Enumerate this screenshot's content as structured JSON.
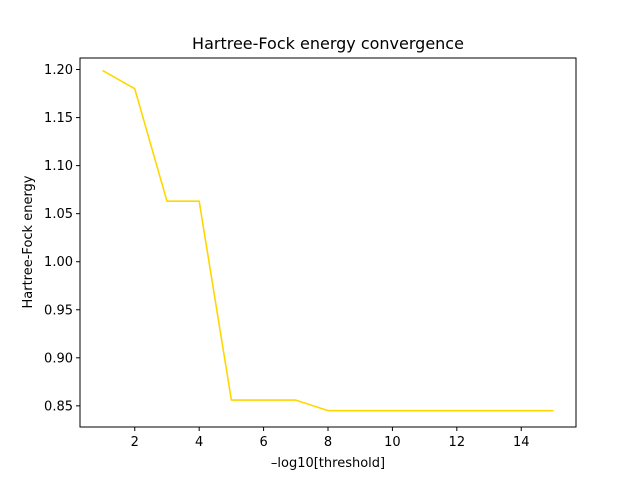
{
  "chart_data": {
    "type": "line",
    "title": "Hartree-Fock energy convergence",
    "xlabel": "–log10[threshold]",
    "ylabel": "Hartree-Fock energy",
    "xlim": [
      0.3,
      15.7
    ],
    "ylim": [
      0.828,
      1.212
    ],
    "xticks": [
      2,
      4,
      6,
      8,
      10,
      12,
      14
    ],
    "yticks": [
      0.85,
      0.9,
      0.95,
      1.0,
      1.05,
      1.1,
      1.15,
      1.2
    ],
    "grid": false,
    "series": [
      {
        "color": "#ffd700",
        "x": [
          1,
          2,
          3,
          4,
          5,
          6,
          7,
          8,
          9,
          10,
          11,
          12,
          13,
          14,
          15
        ],
        "y": [
          1.199,
          1.18,
          1.063,
          1.063,
          0.856,
          0.856,
          0.856,
          0.845,
          0.845,
          0.845,
          0.845,
          0.845,
          0.845,
          0.845,
          0.845
        ]
      }
    ]
  }
}
